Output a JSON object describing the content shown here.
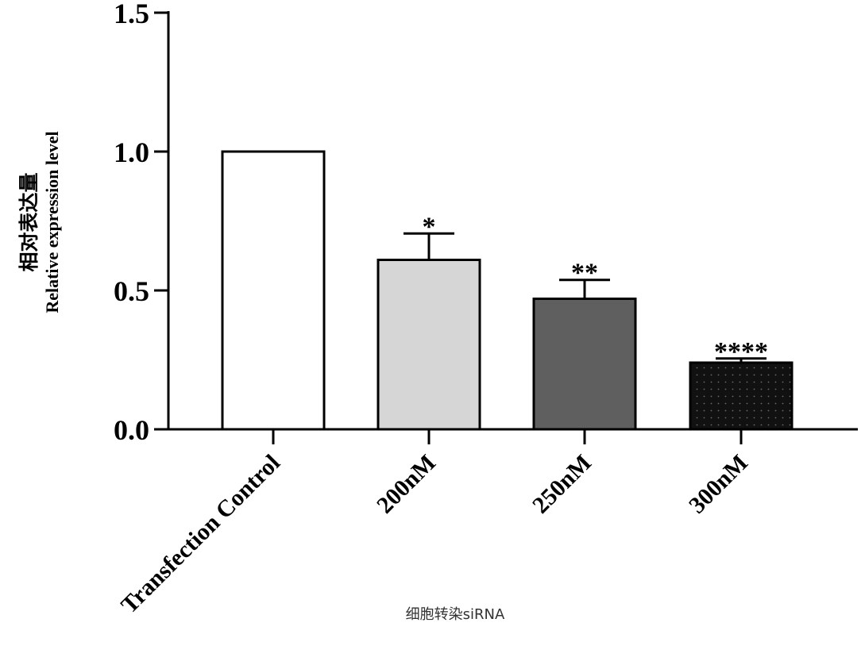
{
  "chart_data": {
    "type": "bar",
    "categories": [
      "Transfection Control",
      "200nM",
      "250nM",
      "300nM"
    ],
    "values": [
      1.0,
      0.61,
      0.47,
      0.24
    ],
    "errors": [
      0,
      0.095,
      0.068,
      0.015
    ],
    "significance": [
      "",
      "*",
      "**",
      "****"
    ],
    "bar_colors": [
      "#ffffff",
      "#d6d6d6",
      "#5f5f5f",
      "#111111"
    ],
    "bar_patterns": [
      "none",
      "none",
      "none",
      "dots"
    ],
    "ylabel_cn": "相对表达量",
    "ylabel_en": "Relative expression level",
    "xlabel": "细胞转染siRNA",
    "ylim": [
      0,
      1.5
    ],
    "yticks": [
      0.0,
      0.5,
      1.0,
      1.5
    ],
    "ytick_labels": [
      "0.0",
      "0.5",
      "1.0",
      "1.5"
    ]
  }
}
